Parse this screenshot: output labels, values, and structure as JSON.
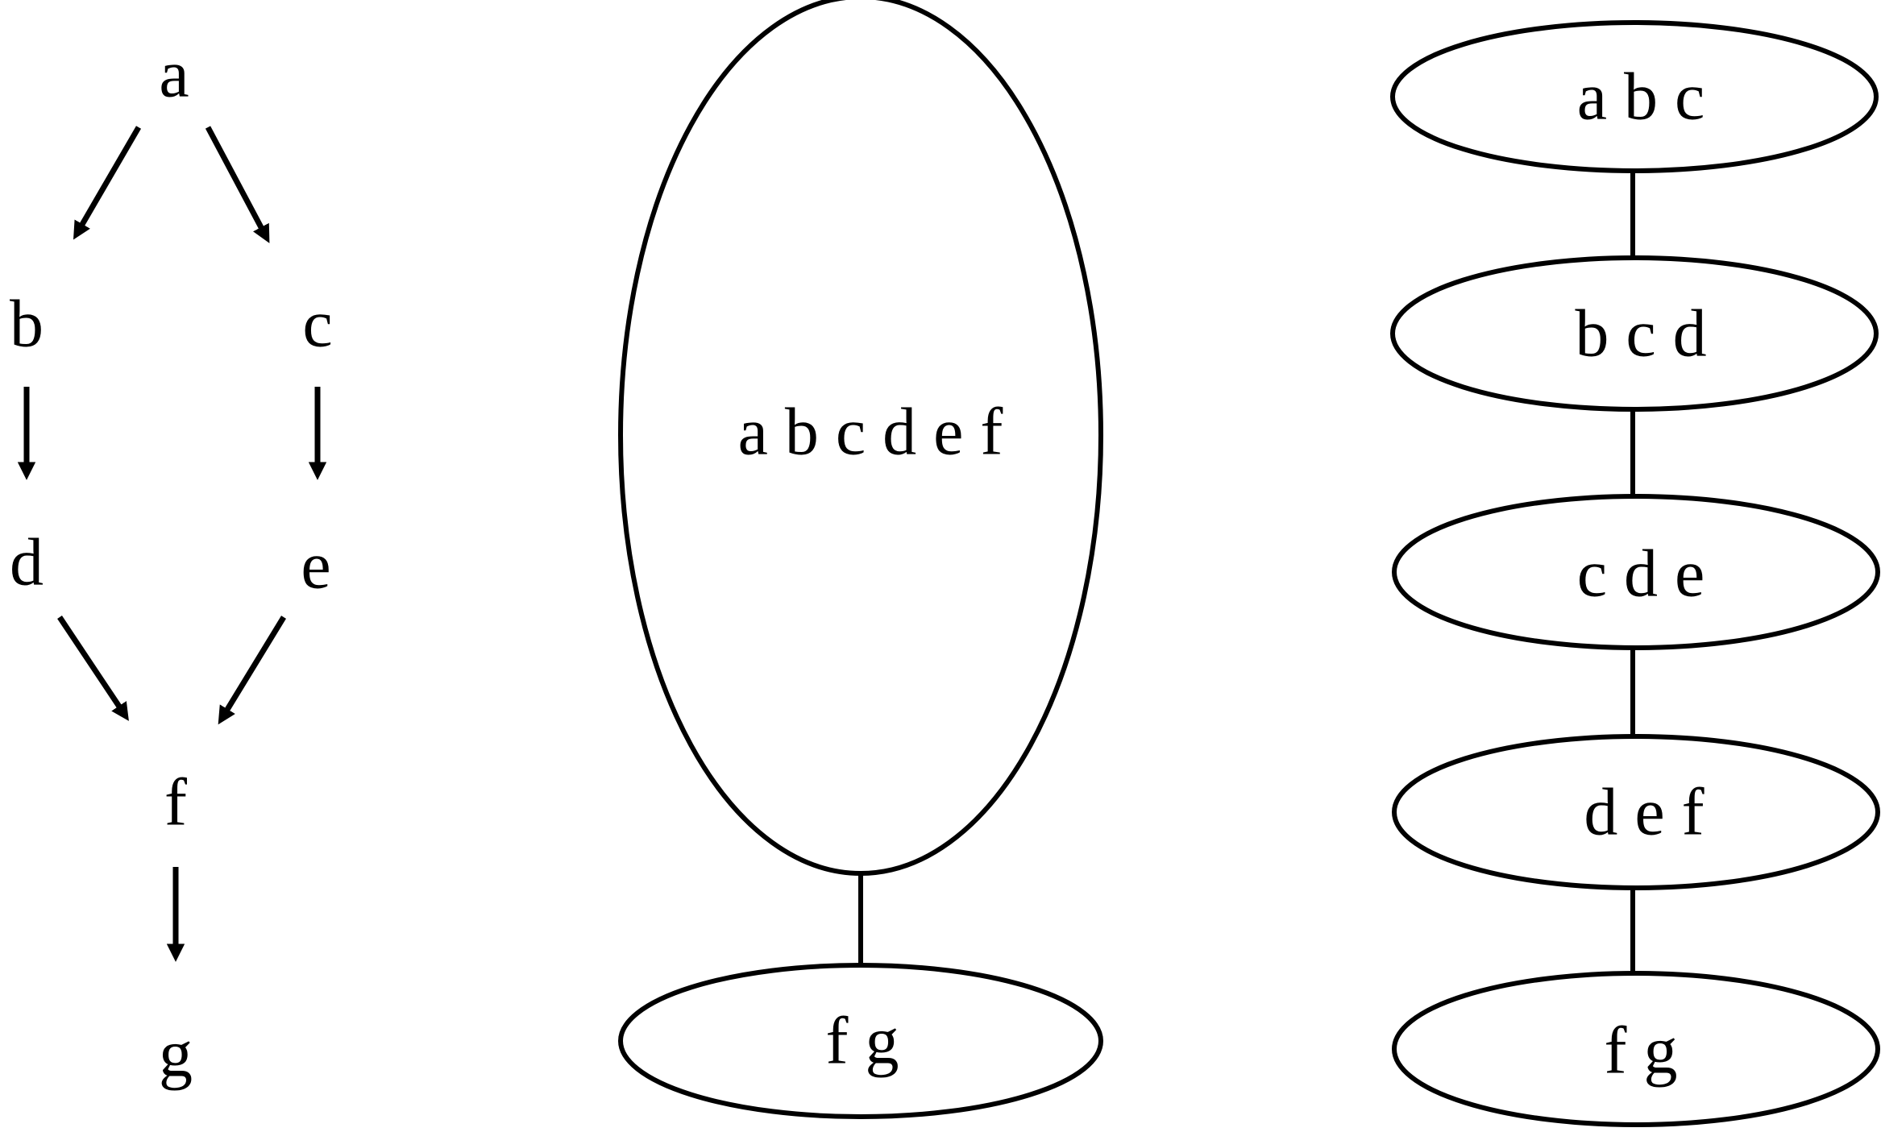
{
  "colors": {
    "stroke": "#000000",
    "background": "#ffffff"
  },
  "dag": {
    "nodes": {
      "a": "a",
      "b": "b",
      "c": "c",
      "d": "d",
      "e": "e",
      "f": "f",
      "g": "g"
    }
  },
  "junction_tree_2": {
    "clusters": [
      "a b c d e f",
      "f g"
    ]
  },
  "junction_tree_5": {
    "clusters": [
      "a b c",
      "b c d",
      "c d e",
      "d e f",
      "f g"
    ]
  }
}
